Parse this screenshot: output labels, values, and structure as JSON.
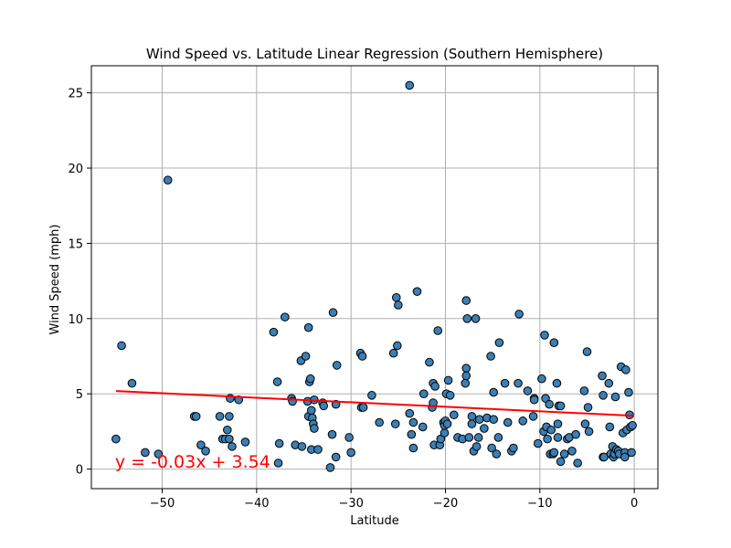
{
  "chart_data": {
    "type": "scatter",
    "title": "Wind Speed vs. Latitude Linear Regression (Southern Hemisphere)",
    "xlabel": "Latitude",
    "ylabel": "Wind Speed (mph)",
    "xlim": [
      -57.5,
      2.5
    ],
    "ylim": [
      -1.3,
      26.8
    ],
    "xticks": [
      -50,
      -40,
      -30,
      -20,
      -10,
      0
    ],
    "yticks": [
      0,
      5,
      10,
      15,
      20,
      25
    ],
    "grid": true,
    "colors": {
      "point_fill": "#3b7fb4",
      "point_edge": "#000000",
      "regression_line": "#ff0000",
      "equation_text": "#ff0000",
      "grid": "#b0b0b0"
    },
    "regression": {
      "slope": -0.03,
      "intercept": 3.54,
      "x_start": -54.9,
      "x_end": 0,
      "equation": "y = -0.03x + 3.54",
      "equation_x": -55,
      "equation_y": 0.1
    },
    "points": [
      [
        -54.9,
        2.0
      ],
      [
        -54.3,
        8.2
      ],
      [
        -53.2,
        5.7
      ],
      [
        -51.8,
        1.1
      ],
      [
        -50.4,
        1.0
      ],
      [
        -49.4,
        19.2
      ],
      [
        -46.6,
        3.5
      ],
      [
        -46.4,
        3.5
      ],
      [
        -45.9,
        1.6
      ],
      [
        -45.4,
        1.2
      ],
      [
        -43.9,
        3.5
      ],
      [
        -43.6,
        2.0
      ],
      [
        -43.3,
        2.0
      ],
      [
        -43.1,
        2.6
      ],
      [
        -42.9,
        3.5
      ],
      [
        -42.8,
        4.7
      ],
      [
        -42.9,
        2.0
      ],
      [
        -42.6,
        1.5
      ],
      [
        -41.9,
        4.6
      ],
      [
        -41.2,
        1.8
      ],
      [
        -38.2,
        9.1
      ],
      [
        -37.8,
        5.8
      ],
      [
        -37.7,
        0.4
      ],
      [
        -37.6,
        1.7
      ],
      [
        -37.0,
        10.1
      ],
      [
        -36.3,
        4.7
      ],
      [
        -36.2,
        4.5
      ],
      [
        -35.9,
        1.6
      ],
      [
        -35.3,
        7.2
      ],
      [
        -35.2,
        1.5
      ],
      [
        -34.8,
        7.5
      ],
      [
        -34.6,
        4.5
      ],
      [
        -34.5,
        9.4
      ],
      [
        -34.5,
        3.5
      ],
      [
        -34.4,
        5.8
      ],
      [
        -34.3,
        6.0
      ],
      [
        -34.2,
        3.9
      ],
      [
        -34.2,
        1.3
      ],
      [
        -34.1,
        3.4
      ],
      [
        -34.0,
        3.0
      ],
      [
        -33.9,
        2.7
      ],
      [
        -33.9,
        4.6
      ],
      [
        -33.5,
        1.3
      ],
      [
        -33.0,
        4.4
      ],
      [
        -32.9,
        4.2
      ],
      [
        -32.2,
        0.1
      ],
      [
        -32.0,
        2.3
      ],
      [
        -31.9,
        10.4
      ],
      [
        -31.6,
        4.3
      ],
      [
        -31.6,
        0.8
      ],
      [
        -31.5,
        6.9
      ],
      [
        -30.2,
        2.1
      ],
      [
        -30.0,
        1.1
      ],
      [
        -29.0,
        7.7
      ],
      [
        -28.8,
        7.5
      ],
      [
        -28.9,
        4.1
      ],
      [
        -28.7,
        4.1
      ],
      [
        -27.8,
        4.9
      ],
      [
        -27.0,
        3.1
      ],
      [
        -25.5,
        7.7
      ],
      [
        -25.3,
        3.0
      ],
      [
        -25.2,
        11.4
      ],
      [
        -25.1,
        8.2
      ],
      [
        -25.0,
        10.9
      ],
      [
        -23.8,
        3.7
      ],
      [
        -23.8,
        25.5
      ],
      [
        -23.6,
        2.3
      ],
      [
        -23.4,
        1.4
      ],
      [
        -23.4,
        3.1
      ],
      [
        -23.0,
        11.8
      ],
      [
        -22.4,
        2.8
      ],
      [
        -22.3,
        5.0
      ],
      [
        -21.7,
        7.1
      ],
      [
        -21.4,
        4.1
      ],
      [
        -21.3,
        4.4
      ],
      [
        -21.3,
        5.7
      ],
      [
        -21.2,
        1.6
      ],
      [
        -21.1,
        5.5
      ],
      [
        -20.8,
        9.2
      ],
      [
        -20.6,
        1.6
      ],
      [
        -20.5,
        2.0
      ],
      [
        -20.2,
        3.1
      ],
      [
        -20.1,
        2.4
      ],
      [
        -20.1,
        2.9
      ],
      [
        -20.0,
        3.2
      ],
      [
        -19.9,
        5.0
      ],
      [
        -19.8,
        3.0
      ],
      [
        -19.7,
        5.9
      ],
      [
        -19.5,
        4.9
      ],
      [
        -19.1,
        3.6
      ],
      [
        -18.7,
        2.1
      ],
      [
        -18.2,
        2.0
      ],
      [
        -17.9,
        5.7
      ],
      [
        -17.8,
        6.7
      ],
      [
        -17.8,
        11.2
      ],
      [
        -17.7,
        10.0
      ],
      [
        -17.8,
        6.2
      ],
      [
        -17.5,
        2.1
      ],
      [
        -17.2,
        3.5
      ],
      [
        -17.2,
        3.0
      ],
      [
        -17.0,
        1.2
      ],
      [
        -16.8,
        10.0
      ],
      [
        -16.7,
        1.5
      ],
      [
        -16.5,
        2.1
      ],
      [
        -16.4,
        3.3
      ],
      [
        -15.9,
        2.7
      ],
      [
        -15.6,
        3.4
      ],
      [
        -15.2,
        7.5
      ],
      [
        -15.1,
        1.4
      ],
      [
        -14.9,
        5.1
      ],
      [
        -14.9,
        3.3
      ],
      [
        -14.6,
        1.0
      ],
      [
        -14.4,
        2.1
      ],
      [
        -14.3,
        8.4
      ],
      [
        -13.7,
        5.7
      ],
      [
        -13.4,
        3.1
      ],
      [
        -13.0,
        1.2
      ],
      [
        -12.8,
        1.4
      ],
      [
        -12.3,
        5.7
      ],
      [
        -12.2,
        10.3
      ],
      [
        -11.8,
        3.2
      ],
      [
        -11.3,
        5.2
      ],
      [
        -10.7,
        3.5
      ],
      [
        -10.6,
        4.7
      ],
      [
        -10.6,
        4.6
      ],
      [
        -10.2,
        1.7
      ],
      [
        -9.8,
        6.0
      ],
      [
        -9.6,
        2.5
      ],
      [
        -9.5,
        8.9
      ],
      [
        -9.4,
        4.7
      ],
      [
        -9.3,
        2.8
      ],
      [
        -9.2,
        2.0
      ],
      [
        -9.0,
        4.3
      ],
      [
        -8.9,
        1.0
      ],
      [
        -8.8,
        2.6
      ],
      [
        -8.6,
        1.0
      ],
      [
        -8.5,
        8.4
      ],
      [
        -8.5,
        1.1
      ],
      [
        -8.2,
        5.7
      ],
      [
        -8.1,
        3.0
      ],
      [
        -8.1,
        2.1
      ],
      [
        -8.0,
        4.2
      ],
      [
        -7.8,
        0.5
      ],
      [
        -7.8,
        4.2
      ],
      [
        -7.4,
        1.0
      ],
      [
        -7.1,
        2.0
      ],
      [
        -6.9,
        2.1
      ],
      [
        -6.6,
        1.2
      ],
      [
        -6.2,
        2.3
      ],
      [
        -6.0,
        0.4
      ],
      [
        -5.3,
        5.2
      ],
      [
        -5.2,
        3.0
      ],
      [
        -5.0,
        7.8
      ],
      [
        -4.9,
        4.1
      ],
      [
        -4.8,
        2.5
      ],
      [
        -3.4,
        6.2
      ],
      [
        -3.3,
        4.9
      ],
      [
        -3.3,
        0.8
      ],
      [
        -3.2,
        0.8
      ],
      [
        -2.7,
        5.7
      ],
      [
        -2.6,
        2.8
      ],
      [
        -2.5,
        1.0
      ],
      [
        -2.3,
        1.5
      ],
      [
        -2.2,
        0.8
      ],
      [
        -2.1,
        1.0
      ],
      [
        -2.0,
        4.8
      ],
      [
        -1.9,
        1.3
      ],
      [
        -1.7,
        1.2
      ],
      [
        -1.6,
        1.0
      ],
      [
        -1.4,
        6.8
      ],
      [
        -1.2,
        2.4
      ],
      [
        -1.0,
        1.1
      ],
      [
        -1.0,
        0.8
      ],
      [
        -0.9,
        6.6
      ],
      [
        -0.8,
        2.6
      ],
      [
        -0.6,
        5.1
      ],
      [
        -0.5,
        3.6
      ],
      [
        -0.4,
        2.8
      ],
      [
        -0.3,
        1.1
      ],
      [
        -0.2,
        2.9
      ]
    ]
  }
}
